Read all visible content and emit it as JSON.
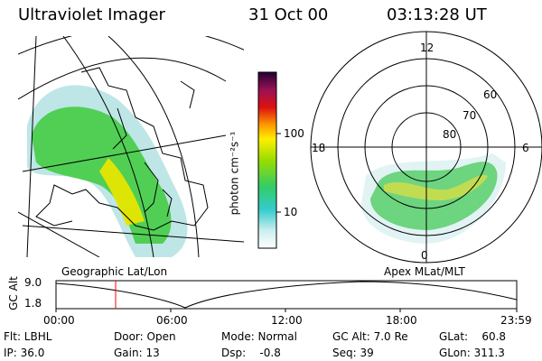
{
  "header": {
    "instrument": "Ultraviolet Imager",
    "date": "31 Oct 00",
    "time": "03:13:28 UT"
  },
  "colorbar": {
    "unit_label": "photon cm⁻²s⁻¹",
    "ticks": [
      "100",
      "10"
    ],
    "scale": "log"
  },
  "geo_map": {
    "caption": "Geographic Lat/Lon"
  },
  "polar_plot": {
    "caption": "Apex MLat/MLT",
    "mlt_labels": {
      "top": "12",
      "left": "18",
      "right": "6",
      "bottom": "0"
    },
    "lat_labels": [
      "60",
      "70",
      "80"
    ]
  },
  "altitude_strip": {
    "ylabel": "GC Alt",
    "y_ticks": [
      "9.0",
      "1.8"
    ],
    "x_ticks": [
      "00:00",
      "06:00",
      "12:00",
      "18:00",
      "23:59"
    ],
    "current_time_marker": "03:13"
  },
  "status": {
    "flt": "Flt: LBHL",
    "ip": "IP: 36.0",
    "door": "Door: Open",
    "gain": "Gain: 13",
    "mode": "Mode: Normal",
    "dsp": "Dsp:    -0.8",
    "gc_alt": "GC Alt: 7.0 Re",
    "seq": "Seq: 39",
    "glat": "GLat:    60.8",
    "glon": "GLon: 311.3"
  },
  "colors": {
    "background": "#ffffff",
    "marker": "#ff0000",
    "aurora_core": "#e6e600",
    "aurora_mid": "#33cc33",
    "aurora_edge": "#66cccc"
  }
}
